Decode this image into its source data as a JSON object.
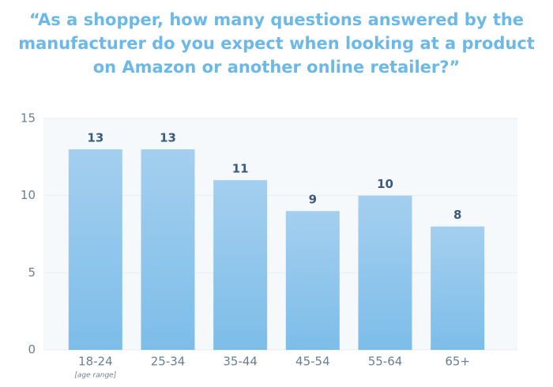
{
  "chart_data": {
    "type": "bar",
    "title": "“As a shopper, how many questions answered by the manufacturer do you expect when looking at a product on Amazon or another online retailer?”",
    "categories": [
      "18-24",
      "25-34",
      "35-44",
      "45-54",
      "55-64",
      "65+"
    ],
    "values": [
      13,
      13,
      11,
      9,
      10,
      8
    ],
    "annotation": "[age range]",
    "color": "#7dbde9",
    "ylim": [
      0,
      15
    ],
    "yticks": [
      0,
      5,
      10,
      15
    ],
    "grid": true
  }
}
